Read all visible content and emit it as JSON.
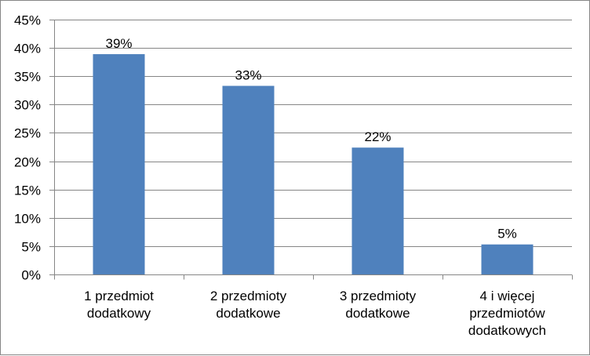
{
  "chart_data": {
    "type": "bar",
    "title": "",
    "xlabel": "",
    "ylabel": "",
    "ylim": [
      0,
      45
    ],
    "yticks": [
      0,
      5,
      10,
      15,
      20,
      25,
      30,
      35,
      40,
      45
    ],
    "ytick_labels": [
      "0%",
      "5%",
      "10%",
      "15%",
      "20%",
      "25%",
      "30%",
      "35%",
      "40%",
      "45%"
    ],
    "grid": true,
    "legend": "none",
    "categories": [
      [
        "1 przedmiot",
        "dodatkowy"
      ],
      [
        "2 przedmioty",
        "dodatkowe"
      ],
      [
        "3 przedmioty",
        "dodatkowe"
      ],
      [
        "4 i więcej",
        "przedmiotów",
        "dodatkowych"
      ]
    ],
    "values": [
      38.9,
      33.3,
      22.4,
      5.3
    ],
    "data_labels": [
      "39%",
      "33%",
      "22%",
      "5%"
    ],
    "bar_color": "#4F81BD",
    "grid_color": "#868686",
    "axis_color": "#868686"
  }
}
